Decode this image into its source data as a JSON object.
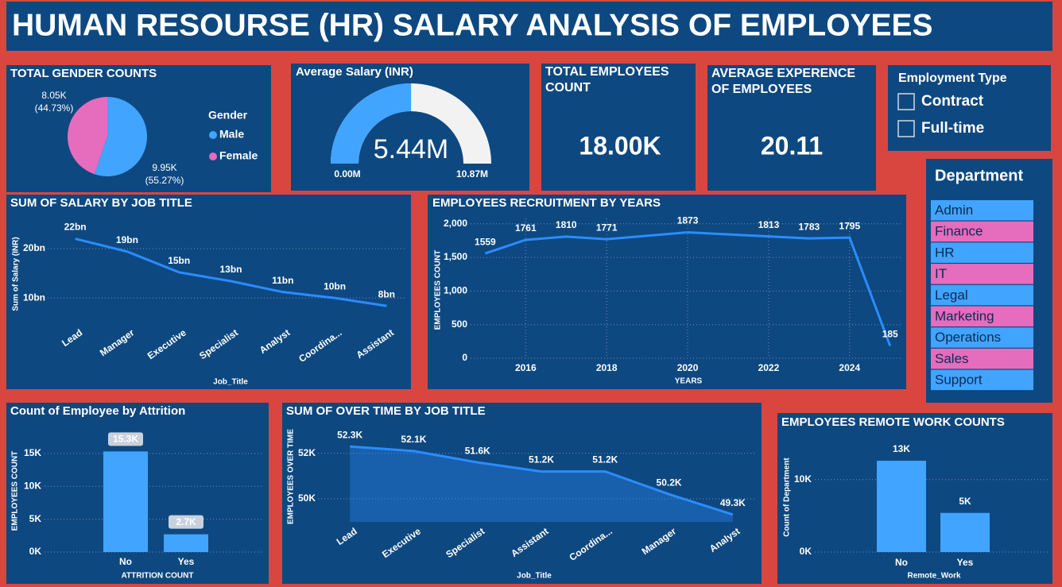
{
  "title": "HUMAN RESOURSE (HR) SALARY ANALYSIS OF EMPLOYEES",
  "cards": [
    {
      "title": "TOTAL EMPLOYEES COUNT",
      "value": "18.00K"
    },
    {
      "title": "AVERAGE EXPERENCE OF EMPLOYEES",
      "value": "20.11"
    }
  ],
  "slicers": [
    {
      "title": "Employment Type",
      "options": [
        "Contract",
        "Full-time"
      ]
    },
    {
      "title": "Department",
      "options": [
        "Admin",
        "Finance",
        "HR",
        "IT",
        "Legal",
        "Marketing",
        "Operations",
        "Sales",
        "Support"
      ]
    }
  ],
  "chart_data": [
    {
      "type": "pie",
      "title": "TOTAL GENDER COUNTS",
      "legend_title": "Gender",
      "categories": [
        "Male",
        "Female"
      ],
      "values": [
        9950,
        8050
      ],
      "value_labels": [
        "9.95K",
        "8.05K"
      ],
      "percent_labels": [
        "(55.27%)",
        "(44.73%)"
      ],
      "colors": [
        "#41a4ff",
        "#e66cbd"
      ]
    },
    {
      "type": "gauge",
      "title": "Average Salary (INR)",
      "value": 5440000,
      "value_label": "5.44M",
      "min": {
        "value": 0,
        "label": "0.00M"
      },
      "max": {
        "value": 10870000,
        "label": "10.87M"
      },
      "color": "#41a4ff"
    },
    {
      "type": "line",
      "title": "SUM OF SALARY BY JOB TITLE",
      "x_label": "Job_Title",
      "y_label": "Sum of Salary (INR)",
      "categories": [
        "Lead",
        "Manager",
        "Executive",
        "Specialist",
        "Analyst",
        "Coordina...",
        "Assistant"
      ],
      "values": [
        22000000000,
        19400000000,
        15200000000,
        13400000000,
        11200000000,
        10000000000,
        8400000000
      ],
      "value_labels": [
        "22bn",
        "19bn",
        "15bn",
        "13bn",
        "11bn",
        "10bn",
        "8bn"
      ],
      "ylim": [
        6000000000,
        24500000000
      ],
      "yticks": [
        {
          "value": 10000000000,
          "label": "10bn"
        },
        {
          "value": 20000000000,
          "label": "20bn"
        }
      ],
      "color": "#2b8cff",
      "grid": true
    },
    {
      "type": "line",
      "title": "EMPLOYEES RECRUITMENT BY YEARS",
      "x_label": "YEARS",
      "y_label": "EMPLOYEES COUNT",
      "x": [
        2015,
        2016,
        2017,
        2018,
        2020,
        2022,
        2023,
        2024,
        2025
      ],
      "values": [
        1559,
        1761,
        1810,
        1771,
        1873,
        1813,
        1783,
        1795,
        185
      ],
      "xlim": [
        2014.6,
        2025.3
      ],
      "xticks": [
        2016,
        2018,
        2020,
        2022,
        2024
      ],
      "ylim": [
        0,
        2080
      ],
      "yticks": [
        0,
        500,
        {
          "value": 1000,
          "label": "1,000"
        },
        {
          "value": 1500,
          "label": "1,500"
        },
        {
          "value": 2000,
          "label": "2,000"
        }
      ],
      "color": "#2b8cff",
      "grid": true
    },
    {
      "type": "bar",
      "title": "Count of Employee by Attrition",
      "x_label": "ATTRITION COUNT",
      "y_label": "EMPLOYEES COUNT",
      "categories": [
        "No",
        "Yes"
      ],
      "values": [
        15300,
        2700
      ],
      "value_labels": [
        "15.3K",
        "2.7K"
      ],
      "ylim": [
        0,
        18000
      ],
      "yticks": [
        {
          "value": 0,
          "label": "0K"
        },
        {
          "value": 5000,
          "label": "5K"
        },
        {
          "value": 10000,
          "label": "10K"
        },
        {
          "value": 15000,
          "label": "15K"
        }
      ],
      "color": "#41a4ff",
      "grid": true
    },
    {
      "type": "area",
      "title": "SUM OF OVER TIME BY JOB TITLE",
      "x_label": "Job_Title",
      "y_label": "EMPLOYEES OVER TIME",
      "categories": [
        "Lead",
        "Executive",
        "Specialist",
        "Assistant",
        "Coordina...",
        "Manager",
        "Analyst"
      ],
      "values": [
        52300,
        52100,
        51600,
        51200,
        51200,
        50200,
        49300
      ],
      "value_labels": [
        "52.3K",
        "52.1K",
        "51.6K",
        "51.2K",
        "51.2K",
        "50.2K",
        "49.3K"
      ],
      "ylim": [
        48980,
        52900
      ],
      "yticks": [
        {
          "value": 50000,
          "label": "50K"
        },
        {
          "value": 52000,
          "label": "52K"
        }
      ],
      "color": "#2b8cff",
      "grid": true
    },
    {
      "type": "bar",
      "title": "EMPLOYEES REMOTE WORK COUNTS",
      "x_label": "Remote_Work",
      "y_label": "Count of Department",
      "categories": [
        "No",
        "Yes"
      ],
      "values": [
        12600,
        5400
      ],
      "value_labels": [
        "13K",
        "5K"
      ],
      "ylim": [
        0,
        14800
      ],
      "yticks": [
        {
          "value": 0,
          "label": "0K"
        },
        {
          "value": 10000,
          "label": "10K"
        }
      ],
      "color": "#41a4ff",
      "grid": true
    }
  ]
}
